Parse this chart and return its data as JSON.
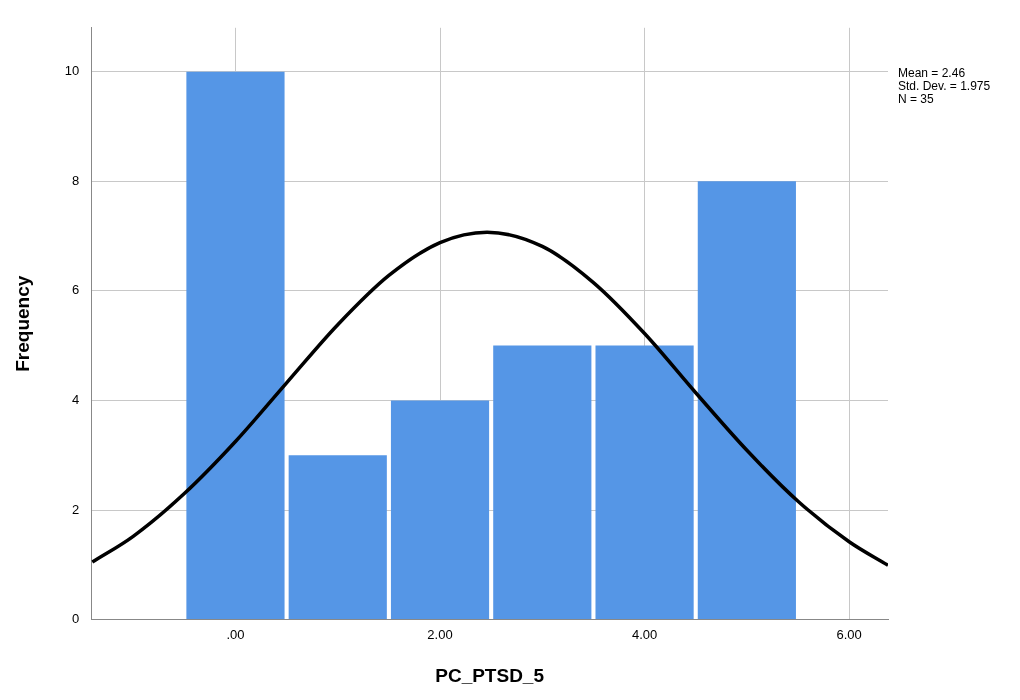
{
  "chart_data": {
    "type": "histogram",
    "xlabel": "PC_PTSD_5",
    "ylabel": "Frequency",
    "bins": [
      -0.5,
      0.5,
      1.5,
      2.5,
      3.5,
      4.5,
      5.5
    ],
    "values": [
      10,
      3,
      4,
      5,
      5,
      8
    ],
    "color": "#5596e6",
    "series": [
      {
        "type": "line",
        "color": "#000000",
        "x": [
          -1.4,
          -1,
          -0.5,
          0,
          0.5,
          1,
          1.5,
          2,
          2.46,
          3,
          3.5,
          4,
          4.5,
          5,
          5.5,
          6,
          6.38
        ],
        "values": [
          1.05,
          1.52,
          2.3,
          3.25,
          4.32,
          5.38,
          6.28,
          6.88,
          7.07,
          6.81,
          6.15,
          5.22,
          4.14,
          3.09,
          2.16,
          1.42,
          0.99
        ]
      }
    ],
    "xlim": [
      -1.41,
      6.38
    ],
    "ylim": [
      0,
      10.8
    ],
    "xticks": [
      {
        "value": 0,
        "label": ".00"
      },
      {
        "value": 2,
        "label": "2.00"
      },
      {
        "value": 4,
        "label": "4.00"
      },
      {
        "value": 6,
        "label": "6.00"
      }
    ],
    "yticks": [
      0,
      2,
      4,
      6,
      8,
      10
    ],
    "grid": true,
    "legend": false,
    "annotations": [
      "Mean = 2.46",
      "Std. Dev. = 1.975",
      "N = 35"
    ]
  }
}
